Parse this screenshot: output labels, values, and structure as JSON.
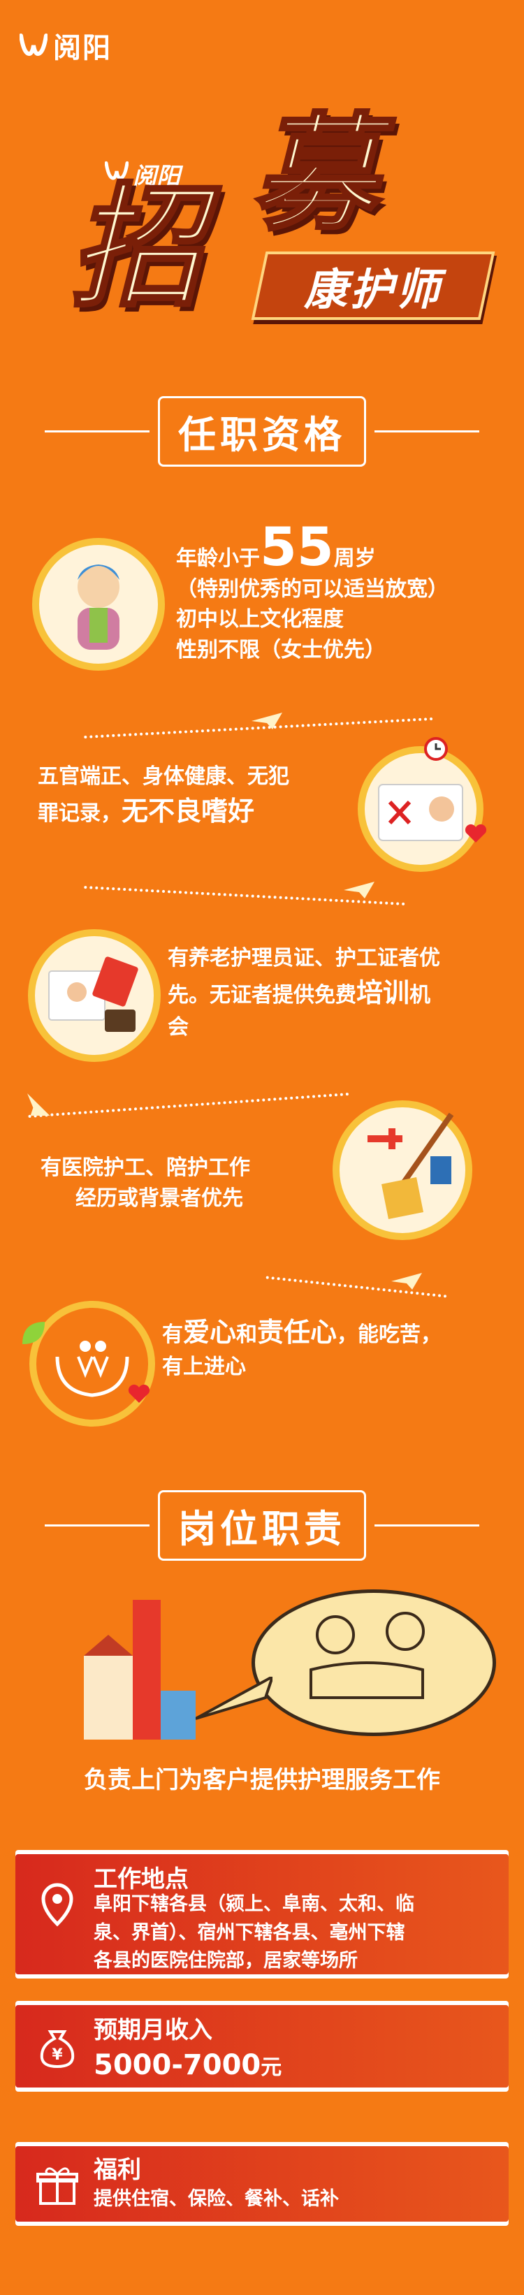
{
  "header": {
    "logo_text": "阅阳",
    "logo_icon": "yueyang-logo-icon"
  },
  "hero": {
    "brand": "阅阳",
    "char1": "招",
    "char2": "募",
    "subtitle": "康护师"
  },
  "section1": {
    "title": "任职资格"
  },
  "qualifications": {
    "q1": {
      "line1_pre": "年龄小于",
      "line1_num": "55",
      "line1_post": "周岁",
      "line2": "（特别优秀的可以适当放宽）",
      "line3": "初中以上文化程度",
      "line4": "性别不限（女士优先）"
    },
    "q2": {
      "line1": "五官端正、身体健康、无犯",
      "line2_pre": "罪记录，",
      "line2_em": "无不良嗜好"
    },
    "q3": {
      "line1": "有养老护理员证、护工证者优",
      "line2_pre": "先。无证者提供免费",
      "line2_em": "培训",
      "line2_post": "机",
      "line3": "会"
    },
    "q4": {
      "line1_pre": "有",
      "line1_em": "医院护工、陪护工作",
      "line2": "经历或背景者优先"
    },
    "q5": {
      "pre": "有",
      "em1": "爱心",
      "mid": "和",
      "em2": "责任心",
      "post": "，能吃苦，",
      "line2": "有上进心"
    }
  },
  "section2": {
    "title": "岗位职责"
  },
  "duty": {
    "text": "负责上门为客户提供护理服务工作"
  },
  "panels": {
    "location": {
      "title": "工作地点",
      "line1": "阜阳下辖各县（颍上、阜南、太和、临",
      "line2": "泉、界首）、宿州下辖各县、亳州下辖",
      "line3": "各县的医院住院部，居家等场所",
      "icon": "location-pin-icon"
    },
    "salary": {
      "title": "预期月收入",
      "amount": "5000-7000",
      "unit": "元",
      "icon": "money-bag-icon"
    },
    "benefits": {
      "title": "福利",
      "body": "提供住宿、保险、餐补、话补",
      "icon": "gift-icon"
    }
  },
  "colors": {
    "background": "#f57a14",
    "panel": "#d7291d",
    "accent": "#f8c23a"
  }
}
